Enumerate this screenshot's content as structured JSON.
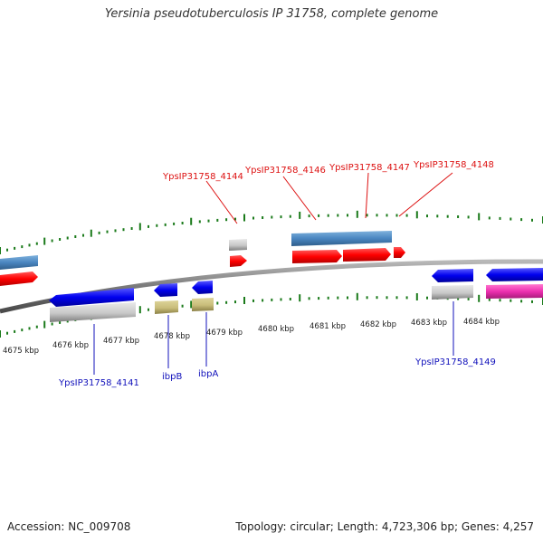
{
  "title": "Yersinia pseudotuberculosis IP 31758, complete genome",
  "colors": {
    "forward_label": "#dd1111",
    "reverse_label": "#1111bb",
    "tick": "#1a7a1a",
    "backbone": "#7a7a7a",
    "red_gene": "#ff0000",
    "blue_gene": "#0000ee",
    "steel": "#4a86c0",
    "gray": "#c8c8c8",
    "olive": "#c9bd7a",
    "magenta": "#ee2fb0"
  },
  "scale_labels": [
    "4675 kbp",
    "4676 kbp",
    "4677 kbp",
    "4678 kbp",
    "4679 kbp",
    "4680 kbp",
    "4681 kbp",
    "4682 kbp",
    "4683 kbp",
    "4684 kbp"
  ],
  "gene_labels_top": [
    "YpsIP31758_4144",
    "YpsIP31758_4146",
    "YpsIP31758_4147",
    "YpsIP31758_4148"
  ],
  "gene_labels_bottom": [
    "YpsIP31758_4141",
    "ibpB",
    "ibpA",
    "YpsIP31758_4149"
  ],
  "footer": {
    "accession": "Accession: NC_009708",
    "topology": "Topology: circular; Length: 4,723,306 bp; Genes: 4,257"
  }
}
